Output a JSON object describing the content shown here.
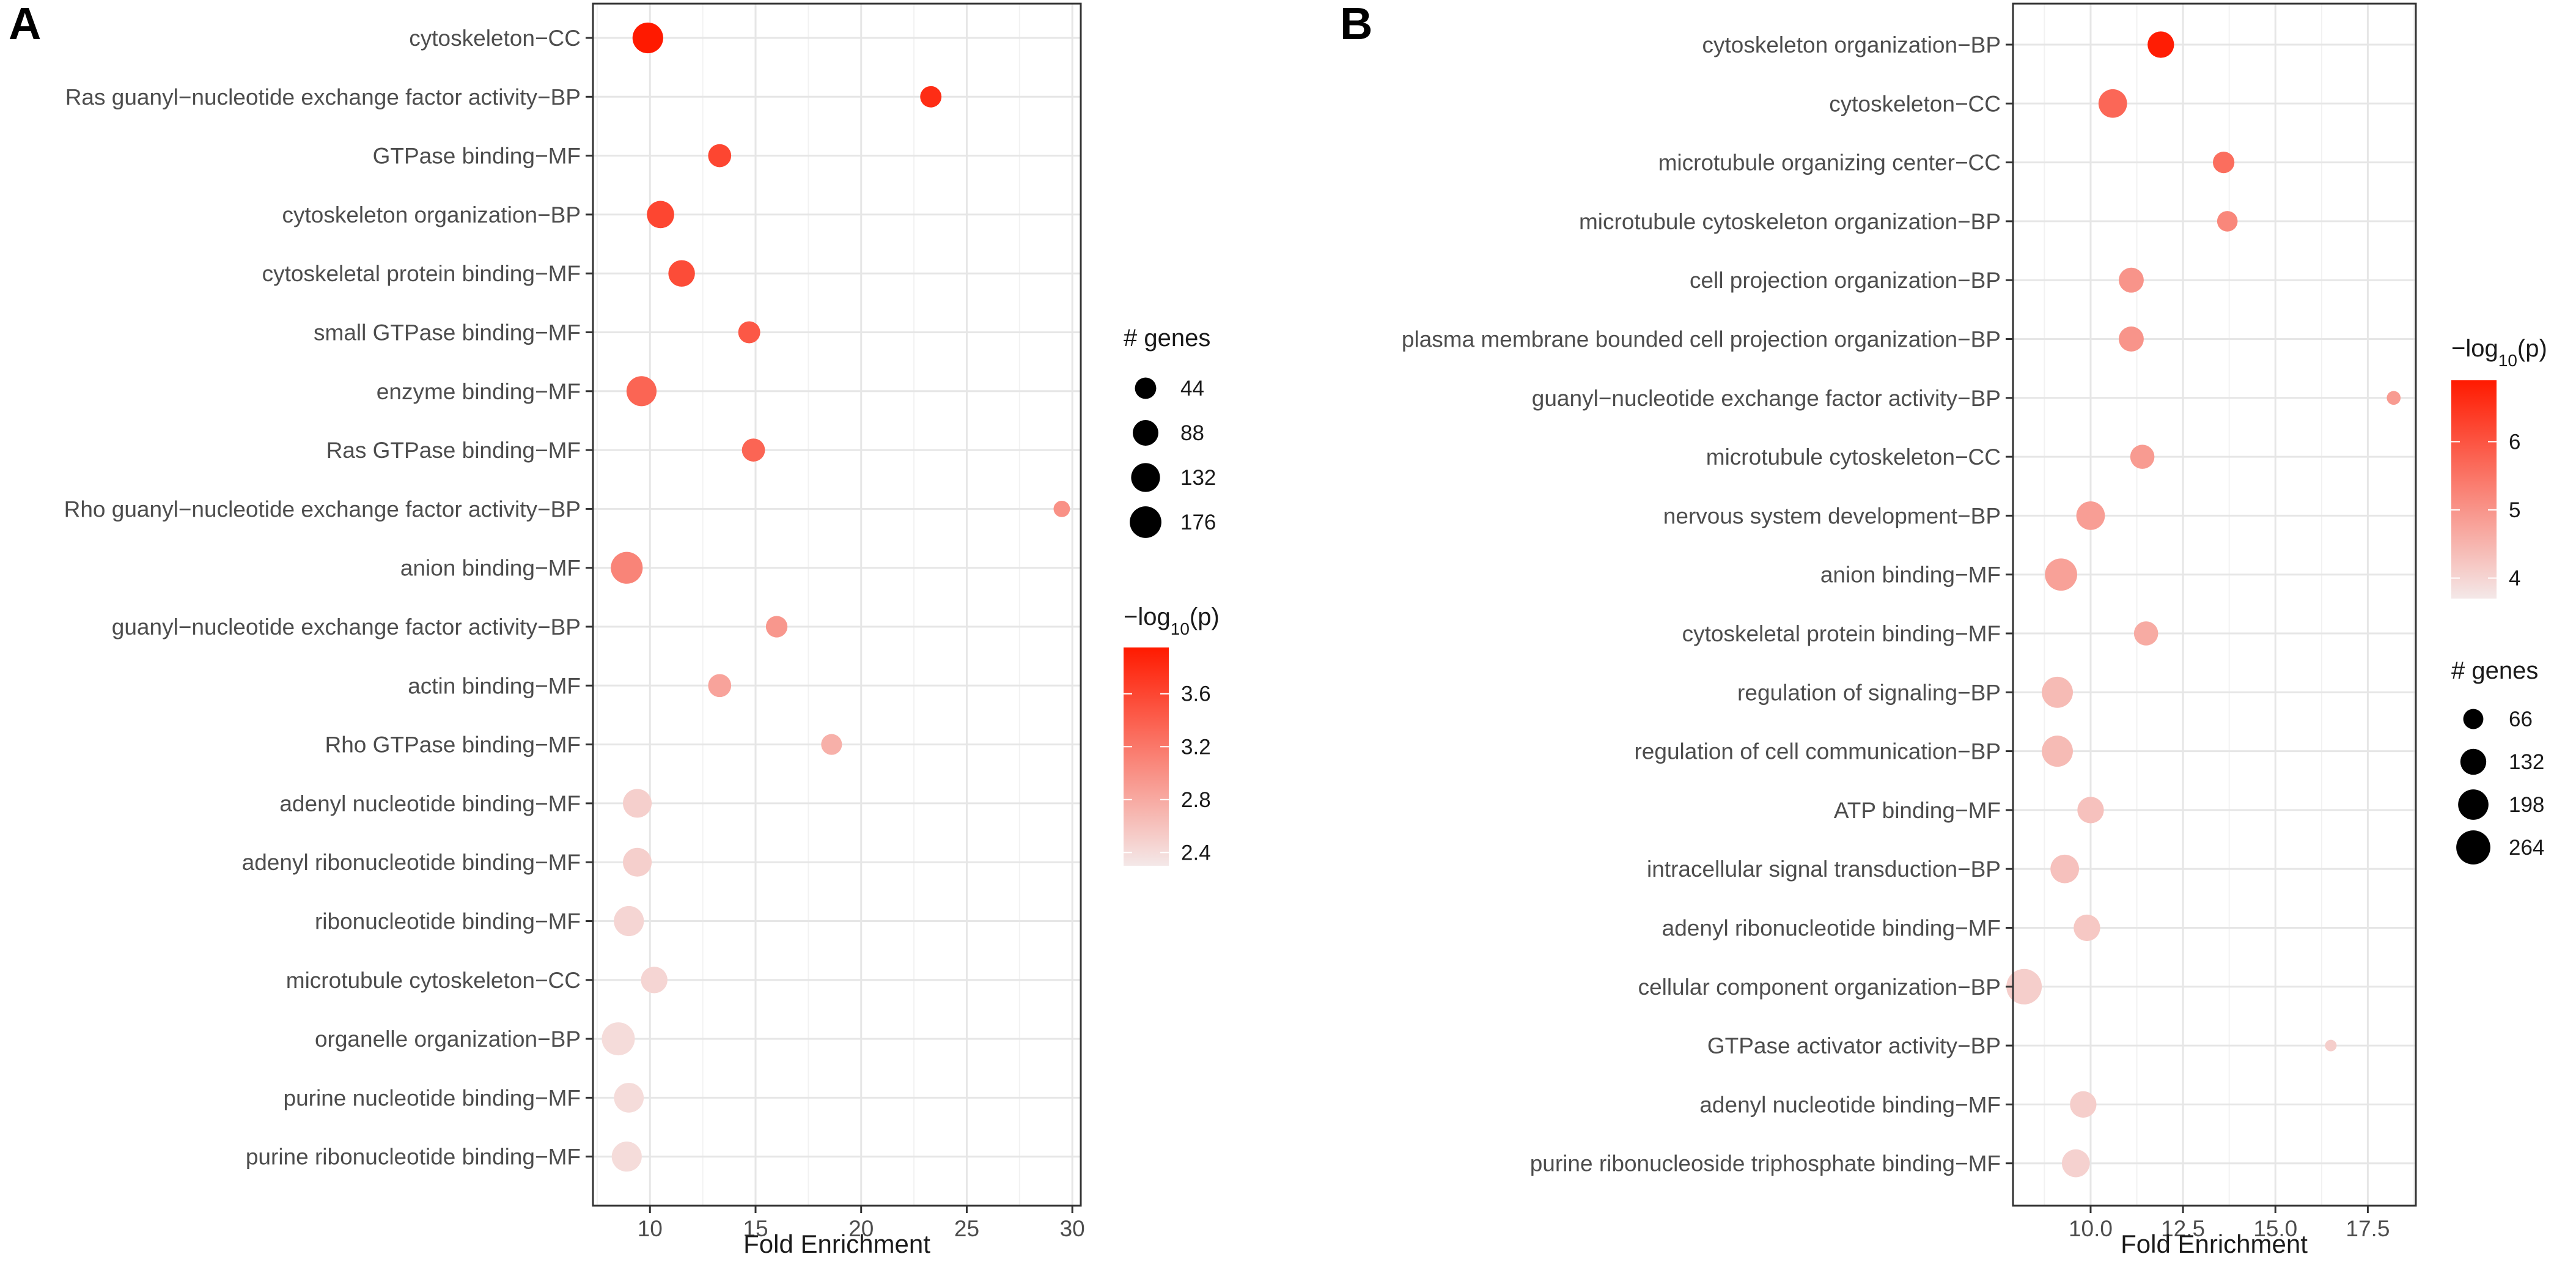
{
  "colors": {
    "low": "#f4e8e8",
    "high": "#ff1a00",
    "grid_major": "#e6e6e6",
    "grid_minor": "#f2f2f2",
    "frame": "#333333",
    "legend_dot": "#000000"
  },
  "chart_data": [
    {
      "type": "scatter",
      "panel_label": "A",
      "xlabel": "Fold Enrichment",
      "xlim": [
        7.3,
        30.4
      ],
      "xticks": [
        10,
        15,
        20,
        25,
        30
      ],
      "xtick_labels": [
        "10",
        "15",
        "20",
        "25",
        "30"
      ],
      "categories": [
        "cytoskeleton−CC",
        "Ras guanyl−nucleotide exchange factor activity−BP",
        "GTPase binding−MF",
        "cytoskeleton organization−BP",
        "cytoskeletal protein binding−MF",
        "small GTPase binding−MF",
        "enzyme binding−MF",
        "Ras GTPase binding−MF",
        "Rho guanyl−nucleotide exchange factor activity−BP",
        "anion binding−MF",
        "guanyl−nucleotide exchange factor activity−BP",
        "actin binding−MF",
        "Rho GTPase binding−MF",
        "adenyl nucleotide binding−MF",
        "adenyl ribonucleotide binding−MF",
        "ribonucleotide binding−MF",
        "microtubule cytoskeleton−CC",
        "organelle organization−BP",
        "purine nucleotide binding−MF",
        "purine ribonucleotide binding−MF"
      ],
      "fold_enrichment": [
        9.9,
        23.3,
        13.3,
        10.5,
        11.5,
        14.7,
        9.6,
        14.9,
        29.5,
        8.9,
        16.0,
        13.3,
        18.6,
        9.4,
        9.4,
        9.0,
        10.2,
        8.5,
        9.0,
        8.9
      ],
      "genes": [
        160,
        44,
        60,
        110,
        100,
        50,
        150,
        60,
        12,
        180,
        46,
        60,
        40,
        130,
        130,
        150,
        100,
        200,
        145,
        150
      ],
      "neg_log10_p": [
        3.95,
        3.8,
        3.6,
        3.6,
        3.55,
        3.45,
        3.35,
        3.35,
        3.0,
        3.1,
        2.95,
        2.85,
        2.75,
        2.5,
        2.5,
        2.45,
        2.45,
        2.4,
        2.4,
        2.4
      ],
      "color_range": [
        2.3,
        3.95
      ],
      "size_legend": {
        "title": "# genes",
        "values": [
          44,
          88,
          132,
          176
        ],
        "labels": [
          "44",
          "88",
          "132",
          "176"
        ]
      },
      "color_legend": {
        "title": "−log",
        "title_sub": "10",
        "title_tail": "(p)",
        "values": [
          2.4,
          2.8,
          3.2,
          3.6
        ],
        "labels": [
          "2.4",
          "2.8",
          "3.2",
          "3.6"
        ]
      }
    },
    {
      "type": "scatter",
      "panel_label": "B",
      "xlabel": "Fold Enrichment",
      "xlim": [
        7.9,
        18.8
      ],
      "xticks": [
        10,
        12.5,
        15,
        17.5
      ],
      "xtick_labels": [
        "10.0",
        "12.5",
        "15.0",
        "17.5"
      ],
      "categories": [
        "cytoskeleton organization−BP",
        "cytoskeleton−CC",
        "microtubule organizing center−CC",
        "microtubule cytoskeleton organization−BP",
        "cell projection organization−BP",
        "plasma membrane bounded cell projection organization−BP",
        "guanyl−nucleotide exchange factor activity−BP",
        "microtubule cytoskeleton−CC",
        "nervous system development−BP",
        "anion binding−MF",
        "cytoskeletal protein binding−MF",
        "regulation of signaling−BP",
        "regulation of cell communication−BP",
        "ATP binding−MF",
        "intracellular signal transduction−BP",
        "adenyl ribonucleotide binding−MF",
        "cellular component organization−BP",
        "GTPase activator activity−BP",
        "adenyl nucleotide binding−MF",
        "purine ribonucleoside triphosphate binding−MF"
      ],
      "fold_enrichment": [
        11.9,
        10.6,
        13.6,
        13.7,
        11.1,
        11.1,
        18.2,
        11.4,
        10.0,
        9.2,
        11.5,
        9.1,
        9.1,
        10.0,
        9.3,
        9.9,
        8.2,
        16.5,
        9.8,
        9.6
      ],
      "genes": [
        140,
        170,
        80,
        70,
        120,
        120,
        20,
        110,
        170,
        230,
        110,
        210,
        210,
        140,
        170,
        140,
        290,
        10,
        140,
        160
      ],
      "neg_log10_p": [
        6.85,
        5.7,
        5.6,
        5.2,
        5.0,
        5.0,
        4.9,
        4.9,
        4.85,
        4.8,
        4.65,
        4.4,
        4.4,
        4.3,
        4.3,
        4.2,
        4.1,
        4.1,
        4.1,
        4.05
      ],
      "color_range": [
        3.7,
        6.9
      ],
      "size_legend": {
        "title": "# genes",
        "values": [
          66,
          132,
          198,
          264
        ],
        "labels": [
          "66",
          "132",
          "198",
          "264"
        ]
      },
      "color_legend": {
        "title": "−log",
        "title_sub": "10",
        "title_tail": "(p)",
        "values": [
          4,
          5,
          6
        ],
        "labels": [
          "4",
          "5",
          "6"
        ]
      }
    }
  ]
}
